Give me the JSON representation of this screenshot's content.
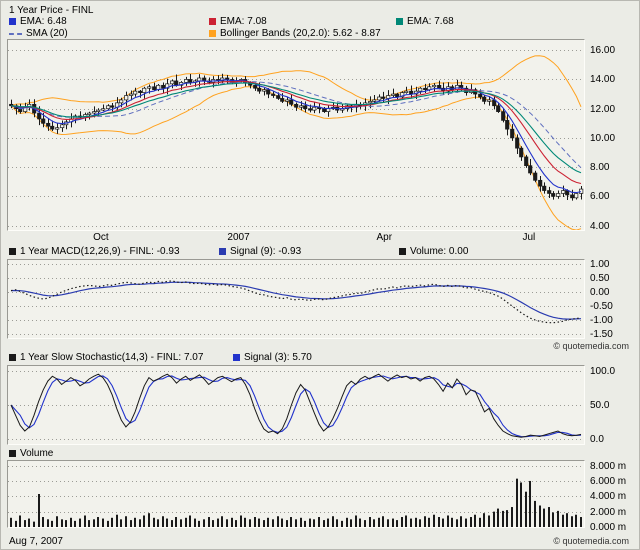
{
  "price_header": {
    "title": "1 Year Price - FINL",
    "ema1": "EMA: 6.48",
    "sma": "SMA (20)",
    "ema2": "EMA: 7.08",
    "bollinger": "Bollinger Bands (20,2.0): 5.62 - 8.87",
    "ema3": "EMA: 7.68"
  },
  "macd_header": {
    "finl": "1 Year MACD(12,26,9) - FINL: -0.93",
    "signal": "Signal (9): -0.93",
    "volume": "Volume: 0.00"
  },
  "stoch_header": {
    "finl": "1 Year Slow Stochastic(14,3) - FINL: 7.07",
    "signal": "Signal (3): 5.70"
  },
  "volume_header": {
    "label": "Volume"
  },
  "credit_mid": "© quotemedia.com",
  "footer": {
    "date": "Aug 7, 2007",
    "credit": "© quotemedia.com"
  },
  "colors": {
    "ema_fast": "#2233cc",
    "ema_mid": "#cc2233",
    "ema_slow": "#008877",
    "sma": "#5f6fbf",
    "bollinger": "#ffa21f",
    "macd": "#1a1a1a",
    "signal": "#2a3bb0",
    "stoch_k": "#1a1a1a",
    "stoch_d": "#2233cc",
    "volume_bar": "#1a1a1a",
    "grid": "#9c9c96",
    "candle": "#1a1a1a"
  },
  "chart_data": [
    {
      "type": "candlestick",
      "name": "price",
      "title": "1 Year Price - FINL",
      "ylim": [
        4,
        16
      ],
      "y_ticks": [
        "16.00",
        "14.00",
        "12.00",
        "10.00",
        "8.00",
        "6.00",
        "4.00"
      ],
      "x_labels": [
        {
          "label": "Oct",
          "pos": 0.163
        },
        {
          "label": "2007",
          "pos": 0.402
        },
        {
          "label": "Apr",
          "pos": 0.655
        },
        {
          "label": "Jul",
          "pos": 0.906
        }
      ],
      "close": [
        12.2,
        12.0,
        11.8,
        12.1,
        12.3,
        11.7,
        11.3,
        11.0,
        10.8,
        10.6,
        10.7,
        10.9,
        11.1,
        11.3,
        11.5,
        11.4,
        11.6,
        11.7,
        11.8,
        11.9,
        12.0,
        12.2,
        12.1,
        12.4,
        12.6,
        12.9,
        13.0,
        13.2,
        13.1,
        13.4,
        13.5,
        13.3,
        13.6,
        13.4,
        13.7,
        13.9,
        13.6,
        13.8,
        14.0,
        13.8,
        13.9,
        14.1,
        13.9,
        13.8,
        14.0,
        13.9,
        14.1,
        14.0,
        13.8,
        13.9,
        14.0,
        13.8,
        13.6,
        13.4,
        13.2,
        13.3,
        13.0,
        12.9,
        12.7,
        12.5,
        12.6,
        12.3,
        12.1,
        12.2,
        12.0,
        11.9,
        12.1,
        12.0,
        11.8,
        12.0,
        12.1,
        11.9,
        12.0,
        12.2,
        12.1,
        12.3,
        12.2,
        12.4,
        12.5,
        12.6,
        12.8,
        12.7,
        12.9,
        13.0,
        12.8,
        13.1,
        13.2,
        13.0,
        13.2,
        13.4,
        13.3,
        13.5,
        13.6,
        13.4,
        13.2,
        13.5,
        13.3,
        13.6,
        13.4,
        13.1,
        13.3,
        13.0,
        12.8,
        12.5,
        12.6,
        12.2,
        11.8,
        11.2,
        10.6,
        10.0,
        9.3,
        8.7,
        8.1,
        7.6,
        7.1,
        6.7,
        6.4,
        6.2,
        6.0,
        6.2,
        6.4,
        6.1,
        5.9,
        6.2,
        6.5
      ],
      "indicators": {
        "ema_current": [
          6.48,
          7.08,
          7.68
        ],
        "sma_period": 20,
        "bollinger": {
          "period": 20,
          "stdev": 2.0,
          "lower": 5.62,
          "upper": 8.87
        }
      }
    },
    {
      "type": "line",
      "name": "macd",
      "title": "1 Year MACD(12,26,9) - FINL",
      "ylim": [
        -1.5,
        1.0
      ],
      "y_ticks": [
        "1.00",
        "0.50",
        "0.00",
        "-0.50",
        "-1.00",
        "-1.50"
      ],
      "signal_period": 9,
      "current": {
        "macd": -0.93,
        "signal": -0.93,
        "volume": 0.0
      },
      "macd": [
        0.05,
        0.08,
        0.02,
        -0.05,
        -0.12,
        -0.18,
        -0.22,
        -0.25,
        -0.22,
        -0.15,
        -0.08,
        0.0,
        0.06,
        0.12,
        0.16,
        0.2,
        0.22,
        0.24,
        0.22,
        0.2,
        0.22,
        0.26,
        0.24,
        0.28,
        0.32,
        0.35,
        0.33,
        0.3,
        0.28,
        0.32,
        0.36,
        0.32,
        0.38,
        0.35,
        0.38,
        0.4,
        0.36,
        0.34,
        0.36,
        0.32,
        0.3,
        0.32,
        0.28,
        0.26,
        0.28,
        0.25,
        0.27,
        0.25,
        0.2,
        0.18,
        0.15,
        0.1,
        0.04,
        -0.02,
        -0.08,
        -0.1,
        -0.15,
        -0.18,
        -0.2,
        -0.24,
        -0.2,
        -0.26,
        -0.28,
        -0.25,
        -0.28,
        -0.3,
        -0.26,
        -0.25,
        -0.28,
        -0.24,
        -0.2,
        -0.18,
        -0.14,
        -0.1,
        -0.08,
        -0.04,
        -0.05,
        0.0,
        0.04,
        0.08,
        0.12,
        0.1,
        0.14,
        0.18,
        0.15,
        0.2,
        0.22,
        0.2,
        0.22,
        0.25,
        0.22,
        0.26,
        0.28,
        0.24,
        0.2,
        0.24,
        0.2,
        0.24,
        0.2,
        0.15,
        0.16,
        0.1,
        0.06,
        0.02,
        -0.02,
        -0.08,
        -0.15,
        -0.25,
        -0.38,
        -0.5,
        -0.62,
        -0.74,
        -0.85,
        -0.94,
        -1.0,
        -1.05,
        -1.08,
        -1.1,
        -1.1,
        -1.08,
        -1.05,
        -1.0,
        -0.97,
        -0.95,
        -0.93
      ]
    },
    {
      "type": "line",
      "name": "slow_stochastic",
      "title": "1 Year Slow Stochastic(14,3) - FINL",
      "ylim": [
        0,
        100
      ],
      "y_ticks": [
        "100.0",
        "50.0",
        "0.0"
      ],
      "signal_period": 3,
      "current": {
        "k": 7.07,
        "signal": 5.7
      },
      "k": [
        50,
        35,
        20,
        12,
        18,
        35,
        55,
        72,
        85,
        92,
        88,
        80,
        85,
        90,
        86,
        78,
        82,
        88,
        92,
        95,
        90,
        80,
        65,
        45,
        28,
        18,
        25,
        40,
        60,
        78,
        90,
        85,
        88,
        92,
        95,
        90,
        82,
        88,
        92,
        86,
        90,
        94,
        88,
        80,
        85,
        90,
        92,
        88,
        84,
        88,
        90,
        80,
        65,
        45,
        28,
        15,
        10,
        12,
        8,
        15,
        30,
        50,
        68,
        80,
        72,
        55,
        38,
        22,
        12,
        18,
        30,
        45,
        62,
        78,
        85,
        80,
        88,
        92,
        88,
        92,
        95,
        90,
        85,
        90,
        94,
        90,
        92,
        88,
        90,
        85,
        90,
        92,
        88,
        80,
        70,
        82,
        75,
        88,
        80,
        65,
        72,
        70,
        55,
        40,
        45,
        30,
        20,
        12,
        8,
        5,
        4,
        3,
        4,
        6,
        5,
        4,
        6,
        8,
        10,
        12,
        8,
        6,
        5,
        5.7,
        7.07
      ]
    },
    {
      "type": "bar",
      "name": "volume",
      "title": "Volume",
      "ylim": [
        0,
        8
      ],
      "y_ticks": [
        "8.000 m",
        "6.000 m",
        "4.000 m",
        "2.000 m",
        "0.000 m"
      ],
      "values_millions": [
        1.2,
        0.8,
        1.5,
        0.9,
        1.1,
        0.7,
        4.3,
        1.3,
        1.0,
        0.8,
        1.4,
        1.0,
        0.9,
        1.2,
        0.8,
        1.1,
        1.5,
        0.9,
        1.0,
        1.3,
        1.1,
        0.8,
        1.2,
        1.6,
        1.0,
        1.4,
        0.9,
        1.2,
        1.0,
        1.5,
        1.8,
        1.2,
        1.0,
        1.4,
        1.1,
        0.9,
        1.3,
        1.0,
        1.2,
        1.5,
        1.1,
        0.8,
        1.0,
        1.3,
        0.9,
        1.1,
        1.4,
        1.0,
        1.2,
        0.9,
        1.5,
        1.2,
        1.0,
        1.3,
        1.1,
        0.9,
        1.2,
        1.0,
        1.4,
        1.1,
        0.9,
        1.3,
        1.0,
        1.2,
        0.8,
        1.1,
        1.0,
        1.3,
        0.9,
        1.1,
        1.4,
        1.0,
        0.8,
        1.2,
        1.0,
        1.5,
        1.1,
        0.9,
        1.3,
        1.0,
        1.2,
        1.4,
        1.0,
        1.1,
        0.9,
        1.3,
        1.5,
        1.1,
        1.2,
        1.0,
        1.4,
        1.2,
        1.6,
        1.3,
        1.1,
        1.5,
        1.2,
        1.0,
        1.4,
        1.1,
        1.3,
        1.6,
        1.2,
        1.8,
        1.5,
        2.0,
        2.4,
        2.1,
        2.2,
        2.6,
        6.3,
        5.8,
        4.6,
        6.0,
        3.4,
        2.8,
        2.4,
        2.6,
        1.9,
        2.1,
        1.6,
        1.8,
        1.4,
        1.6,
        1.3
      ]
    }
  ]
}
